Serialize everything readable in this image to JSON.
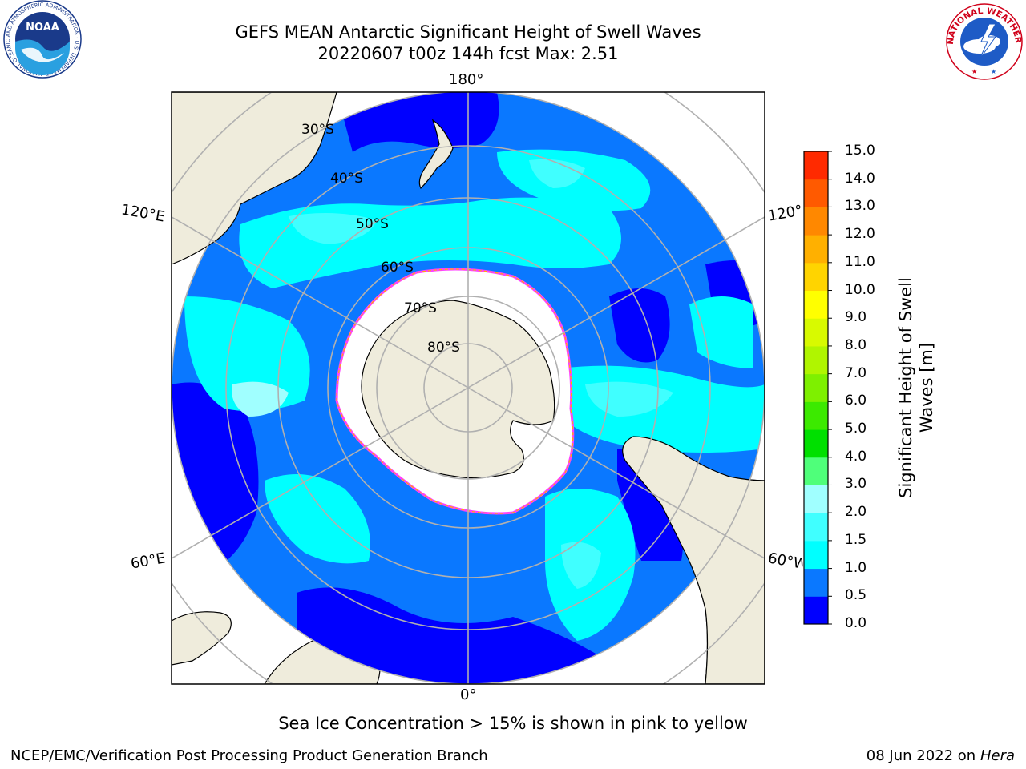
{
  "title": {
    "line1": "GEFS MEAN Antarctic Significant Height of Swell Waves",
    "line2": "20220607 t00z 144h fcst   Max: 2.51"
  },
  "map": {
    "projection": "south-polar-stereographic",
    "lon_labels": {
      "top": "180°",
      "bottom": "0°",
      "upper_left": "120°E",
      "upper_right": "120°W",
      "lower_left": "60°E",
      "lower_right": "60°W"
    },
    "lat_labels": [
      "30°S",
      "40°S",
      "50°S",
      "60°S",
      "70°S",
      "80°S"
    ],
    "colors": {
      "land": "#efecdc",
      "ice": "#ffffff",
      "grid": "#b0b0b0",
      "ice_edge": "#ff40ff"
    }
  },
  "colorbar": {
    "label_line1": "Significant Height of Swell",
    "label_line2": "Waves [m]",
    "ticks": [
      "0.0",
      "0.5",
      "1.0",
      "1.5",
      "2.0",
      "3.0",
      "4.0",
      "5.0",
      "6.0",
      "7.0",
      "8.0",
      "9.0",
      "10.0",
      "11.0",
      "12.0",
      "13.0",
      "14.0",
      "15.0"
    ],
    "colors": [
      "#0000ff",
      "#0a78ff",
      "#00ffff",
      "#40ffff",
      "#a0ffff",
      "#4fff7a",
      "#00e000",
      "#3cea00",
      "#7ef000",
      "#b0f500",
      "#d8fa00",
      "#ffff00",
      "#ffd400",
      "#ffb000",
      "#ff8800",
      "#ff5a00",
      "#ff2a00",
      "#ff0000"
    ]
  },
  "note": "Sea Ice Concentration > 15% is shown in pink to yellow",
  "footer": {
    "left": "NCEP/EMC/Verification Post Processing Product Generation Branch",
    "right_date": "08 Jun 2022 on",
    "right_machine": "Hera"
  },
  "logos": {
    "noaa": {
      "text": "NOAA",
      "ring_text": "NATIONAL OCEANIC AND ATMOSPHERIC ADMINISTRATION · U.S. DEPARTMENT OF COMMERCE"
    },
    "nws": {
      "ring_text": "NATIONAL WEATHER SERVICE"
    }
  }
}
